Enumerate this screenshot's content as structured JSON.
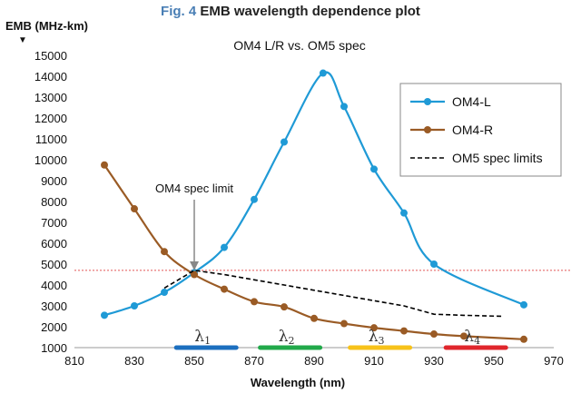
{
  "figure": {
    "number_label": "Fig. 4",
    "title": "EMB wavelength dependence plot"
  },
  "chart_data": {
    "type": "line",
    "title": "OM4 L/R vs. OM5 spec",
    "xlabel": "Wavelength (nm)",
    "ylabel": "EMB (MHz-km)",
    "ylabel_marker": "▼",
    "xlim": [
      810,
      970
    ],
    "ylim": [
      1000,
      15000
    ],
    "xticks": [
      810,
      830,
      850,
      870,
      890,
      910,
      930,
      950,
      970
    ],
    "yticks": [
      1000,
      2000,
      3000,
      4000,
      5000,
      6000,
      7000,
      8000,
      9000,
      10000,
      11000,
      12000,
      13000,
      14000,
      15000
    ],
    "legend_position": "top-right",
    "series": [
      {
        "name": "OM4-L",
        "color": "#1f9ad6",
        "style": "solid-markers",
        "x": [
          820,
          830,
          840,
          850,
          860,
          870,
          880,
          893,
          900,
          910,
          920,
          930,
          960
        ],
        "y": [
          2550,
          3000,
          3650,
          4600,
          5800,
          8100,
          10850,
          14150,
          12550,
          9550,
          7450,
          5000,
          3050
        ]
      },
      {
        "name": "OM4-R",
        "color": "#9a5b25",
        "style": "solid-markers",
        "x": [
          820,
          830,
          840,
          850,
          860,
          870,
          880,
          890,
          900,
          910,
          920,
          930,
          940,
          960
        ],
        "y": [
          9750,
          7650,
          5600,
          4500,
          3800,
          3200,
          2950,
          2400,
          2150,
          1950,
          1800,
          1650,
          1550,
          1400
        ]
      },
      {
        "name": "OM5 spec limits",
        "color": "#000000",
        "style": "dashed",
        "x": [
          840,
          850,
          860,
          870,
          880,
          890,
          900,
          910,
          920,
          930,
          940,
          953
        ],
        "y": [
          3850,
          4700,
          4500,
          4250,
          4000,
          3750,
          3500,
          3250,
          3000,
          2600,
          2550,
          2500
        ]
      }
    ],
    "reference_line": {
      "y": 4700,
      "color": "#e25555",
      "style": "dotted"
    },
    "annotations": [
      {
        "text": "OM4 spec limit",
        "arrow_to": {
          "x": 850,
          "y": 4650
        }
      }
    ],
    "bands": [
      {
        "label": "λ",
        "subscript": "1",
        "x_start": 844,
        "x_end": 864,
        "color": "#1c6fbf"
      },
      {
        "label": "λ",
        "subscript": "2",
        "x_start": 872,
        "x_end": 892,
        "color": "#21a94a"
      },
      {
        "label": "λ",
        "subscript": "3",
        "x_start": 902,
        "x_end": 922,
        "color": "#f7c21a"
      },
      {
        "label": "λ",
        "subscript": "4",
        "x_start": 934,
        "x_end": 954,
        "color": "#e0262c"
      }
    ]
  }
}
